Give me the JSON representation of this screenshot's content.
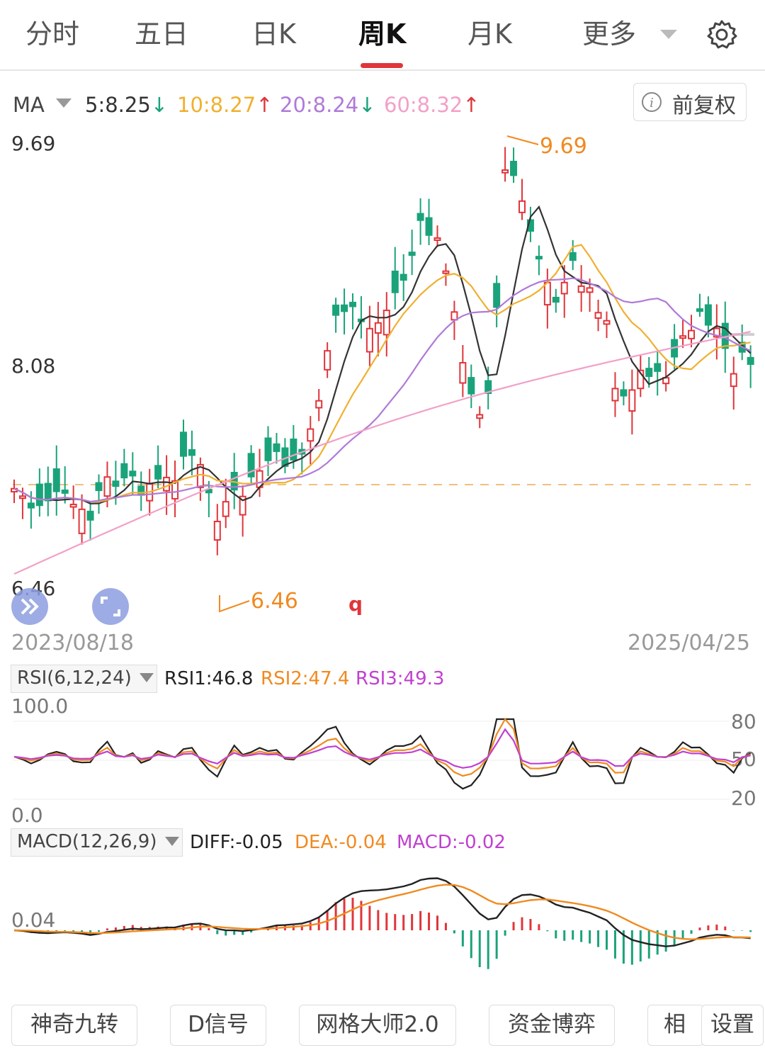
{
  "tabs": [
    "分时",
    "五日",
    "日K",
    "周K",
    "月K",
    "更多"
  ],
  "ma": {
    "label": "MA",
    "ma5": "5:8.25",
    "ma10": "10:8.27",
    "ma20": "20:8.24",
    "ma60": "60:8.32",
    "arrow_down": "↓",
    "arrow_up": "↑",
    "adjust_button": "前复权"
  },
  "price_axis": {
    "high": "9.69",
    "mid": "8.08",
    "low": "6.46"
  },
  "annotations": {
    "high": "9.69",
    "low": "6.46",
    "marker": "q"
  },
  "dates": {
    "start": "2023/08/18",
    "end": "2025/04/25"
  },
  "rsi": {
    "selector": "RSI(6,12,24)",
    "rsi1": "RSI1:46.8",
    "rsi2": "RSI2:47.4",
    "rsi3": "RSI3:49.3",
    "top": "100.0",
    "bottom": "0.0",
    "l80": "80",
    "l50": "50",
    "l20": "20"
  },
  "macd": {
    "selector": "MACD(12,26,9)",
    "diff": "DIFF:-0.05",
    "dea": "DEA:-0.04",
    "macd": "MACD:-0.02",
    "axis": "0.04"
  },
  "bottom_bar": [
    "神奇九转",
    "D信号",
    "网格大师2.0",
    "资金博弈",
    "相",
    "设置"
  ],
  "colors": {
    "up": "#e0353a",
    "down": "#1aa37a",
    "ma5": "#333333",
    "ma10": "#f0b030",
    "ma20": "#b07ad8",
    "ma60": "#f2a0c8"
  }
}
